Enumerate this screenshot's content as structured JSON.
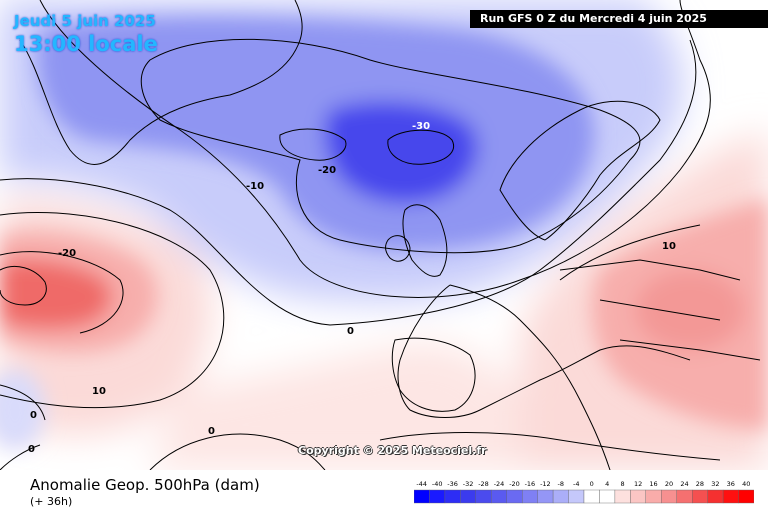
{
  "header": {
    "valid_date": "Jeudi 5 juin 2025",
    "valid_time": "13:00 locale",
    "run": "Run GFS 0 Z du Mercredi 4 juin 2025"
  },
  "map": {
    "copyright": "Copyright © 2025 Meteociel.fr",
    "contour_labels": [
      {
        "value": "-30"
      },
      {
        "value": "-20"
      },
      {
        "value": "-10"
      },
      {
        "value": "-20"
      },
      {
        "value": "0"
      },
      {
        "value": "10"
      },
      {
        "value": "10"
      },
      {
        "value": "0"
      },
      {
        "value": "0"
      },
      {
        "value": "0"
      }
    ],
    "colors": {
      "strong_negative": "#4747ec",
      "negative": "#8f95f2",
      "weak_negative": "#c8ccfa",
      "neutral": "#ffffff",
      "weak_positive": "#fbdad8",
      "positive": "#f7aeac",
      "strong_positive": "#ef6a68",
      "land_outline": "#000000"
    }
  },
  "footer": {
    "field": "Anomalie Geop. 500hPa (dam)",
    "forecast_hour": "(+ 36h)"
  },
  "legend": {
    "ticks": [
      "-44",
      "-40",
      "-36",
      "-32",
      "-28",
      "-24",
      "-20",
      "-16",
      "-12",
      "-8",
      "-4",
      "0",
      "4",
      "8",
      "12",
      "16",
      "20",
      "24",
      "28",
      "32",
      "36",
      "40"
    ],
    "colors": [
      "#0000ff",
      "#1a1aff",
      "#2d2df5",
      "#3b3bee",
      "#4b4bee",
      "#5a5af0",
      "#6a6af2",
      "#7f80f4",
      "#9496f6",
      "#abaef8",
      "#c5c8fb",
      "#ffffff",
      "#ffffff",
      "#fde0de",
      "#fbc6c4",
      "#f9acaa",
      "#f79090",
      "#f57070",
      "#f55050",
      "#f53030",
      "#ff1010",
      "#ff0000"
    ]
  }
}
